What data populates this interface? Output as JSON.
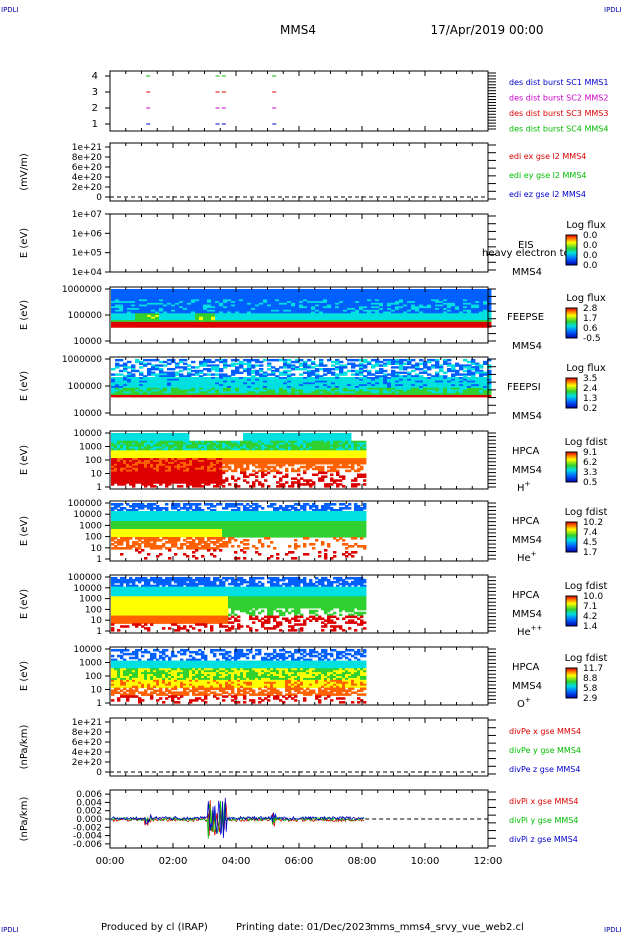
{
  "header": {
    "corner_tl": "IPDLI",
    "corner_tr": "IPDLI",
    "corner_bl": "IPDLI",
    "corner_br": "IPDLI",
    "spacecraft": "MMS4",
    "date": "17/Apr/2019 00:00"
  },
  "footer": {
    "produced": "Produced by cl (IRAP)",
    "printing": "Printing date: 01/Dec/2023",
    "file": "mms_mms4_srvy_vue_web2.cl"
  },
  "chart_data": {
    "type": "multi-panel",
    "x_axis": {
      "range": [
        "00:00",
        "12:00"
      ],
      "ticks": [
        "00:00",
        "02:00",
        "04:00",
        "06:00",
        "08:00",
        "10:00",
        "12:00"
      ]
    },
    "panels": [
      {
        "id": "burst",
        "y_ticks": [
          "1",
          "2",
          "3",
          "4"
        ],
        "legend": [
          {
            "text": "des dist burst SC1 MMS1",
            "color": "#0000cc"
          },
          {
            "text": "des dist burst SC2 MMS2",
            "color": "#cc00cc"
          },
          {
            "text": "des dist burst SC3 MMS3",
            "color": "#dd0000"
          },
          {
            "text": "des dist burst SC4 MMS4",
            "color": "#00bb00"
          }
        ],
        "bursts_hours": [
          1.15,
          3.35,
          3.55,
          5.15
        ]
      },
      {
        "id": "edi",
        "ylabel": "(mV/m)",
        "y_ticks": [
          "1e+21",
          "8e+20",
          "6e+20",
          "4e+20",
          "2e+20",
          "0"
        ],
        "legend": [
          {
            "text": "edi ex gse l2 MMS4",
            "color": "#dd0000"
          },
          {
            "text": "edi ey gse l2 MMS4",
            "color": "#00bb00"
          },
          {
            "text": "edi ez gse l2 MMS4",
            "color": "#0000cc"
          }
        ]
      },
      {
        "id": "eis",
        "ylabel": "E (eV)",
        "y_ticks": [
          "1e+07",
          "1e+06",
          "1e+05",
          "1e+04"
        ],
        "label1": "EIS",
        "label2": "heavy electron to",
        "label3": "MMS4",
        "cb_title": "Log flux",
        "cb_ticks": [
          "0.0",
          "0.0",
          "0.0",
          "0.0"
        ]
      },
      {
        "id": "feepse",
        "ylabel": "E (eV)",
        "y_ticks": [
          "1000000",
          "100000",
          "10000"
        ],
        "label1": "FEEPSE",
        "label2": "MMS4",
        "cb_title": "Log flux",
        "cb_ticks": [
          "2.8",
          "1.7",
          "0.6",
          "-0.5"
        ],
        "data_end_hour": 12
      },
      {
        "id": "feepsi",
        "ylabel": "E (eV)",
        "y_ticks": [
          "1000000",
          "100000",
          "10000"
        ],
        "label1": "FEEPSI",
        "label2": "MMS4",
        "cb_title": "Log flux",
        "cb_ticks": [
          "3.5",
          "2.4",
          "1.3",
          "0.2"
        ],
        "data_end_hour": 12
      },
      {
        "id": "hpca_h",
        "ylabel": "E (eV)",
        "y_ticks": [
          "10000",
          "1000",
          "100",
          "10",
          "1"
        ],
        "label1": "HPCA",
        "label2": "MMS4",
        "species": "H",
        "species_sup": "+",
        "cb_title": "Log fdist",
        "cb_ticks": [
          "9.1",
          "6.2",
          "3.3",
          "0.5"
        ],
        "data_end_hour": 8.1
      },
      {
        "id": "hpca_he",
        "ylabel": "E (eV)",
        "y_ticks": [
          "100000",
          "10000",
          "1000",
          "100",
          "10",
          "1"
        ],
        "label1": "HPCA",
        "label2": "MMS4",
        "species": "He",
        "species_sup": "+",
        "cb_title": "Log fdist",
        "cb_ticks": [
          "10.2",
          "7.4",
          "4.5",
          "1.7"
        ],
        "data_end_hour": 8.1
      },
      {
        "id": "hpca_hepp",
        "ylabel": "E (eV)",
        "y_ticks": [
          "100000",
          "10000",
          "1000",
          "100",
          "10",
          "1"
        ],
        "label1": "HPCA",
        "label2": "MMS4",
        "species": "He",
        "species_sup": "++",
        "cb_title": "Log fdist",
        "cb_ticks": [
          "10.0",
          "7.1",
          "4.2",
          "1.4"
        ],
        "data_end_hour": 8.1
      },
      {
        "id": "hpca_o",
        "ylabel": "E (eV)",
        "y_ticks": [
          "10000",
          "1000",
          "100",
          "10",
          "1"
        ],
        "label1": "HPCA",
        "label2": "MMS4",
        "species": "O",
        "species_sup": "+",
        "cb_title": "Log fdist",
        "cb_ticks": [
          "11.7",
          "8.8",
          "5.8",
          "2.9"
        ],
        "data_end_hour": 8.1
      },
      {
        "id": "divpe",
        "ylabel": "(nPa/km)",
        "y_ticks": [
          "1e+21",
          "8e+20",
          "6e+20",
          "4e+20",
          "2e+20",
          "0"
        ],
        "legend": [
          {
            "text": "divPe x gse MMS4",
            "color": "#dd0000"
          },
          {
            "text": "divPe y gse MMS4",
            "color": "#00bb00"
          },
          {
            "text": "divPe z gse MMS4",
            "color": "#0000cc"
          }
        ]
      },
      {
        "id": "divpi",
        "ylabel": "(nPa/km)",
        "y_ticks": [
          "0.006",
          "0.004",
          "0.002",
          "0.000",
          "-0.002",
          "-0.004",
          "-0.006"
        ],
        "y_range": [
          -0.007,
          0.007
        ],
        "legend": [
          {
            "text": "divPi x gse MMS4",
            "color": "#dd0000"
          },
          {
            "text": "divPi y gse MMS4",
            "color": "#00bb00"
          },
          {
            "text": "divPi z gse MMS4",
            "color": "#0000cc"
          }
        ],
        "data_end_hour": 8.1
      }
    ]
  }
}
